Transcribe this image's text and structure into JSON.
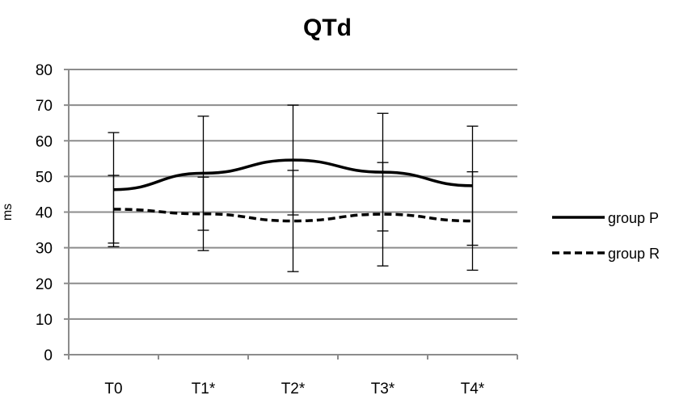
{
  "chart_data": {
    "type": "line",
    "title": "QTd",
    "xlabel": "",
    "ylabel": "ms",
    "categories": [
      "T0",
      "T1*",
      "T2*",
      "T3*",
      "T4*"
    ],
    "ylim": [
      0,
      80
    ],
    "yticks": [
      0,
      10,
      20,
      30,
      40,
      50,
      60,
      70,
      80
    ],
    "grid": "horizontal",
    "legend_position": "right",
    "series": [
      {
        "name": "group P",
        "style": "solid",
        "values": [
          46.3,
          50.9,
          54.6,
          51.2,
          47.4
        ],
        "error": [
          16.0,
          16.0,
          15.4,
          16.5,
          16.7
        ]
      },
      {
        "name": "group R",
        "style": "dashed",
        "values": [
          40.8,
          39.5,
          37.5,
          39.4,
          37.5
        ],
        "error": [
          9.5,
          10.3,
          14.2,
          14.5,
          13.8
        ]
      }
    ],
    "colors": {
      "lines": "#000000",
      "grid": "#8c8c8c",
      "axis": "#8c8c8c"
    }
  }
}
